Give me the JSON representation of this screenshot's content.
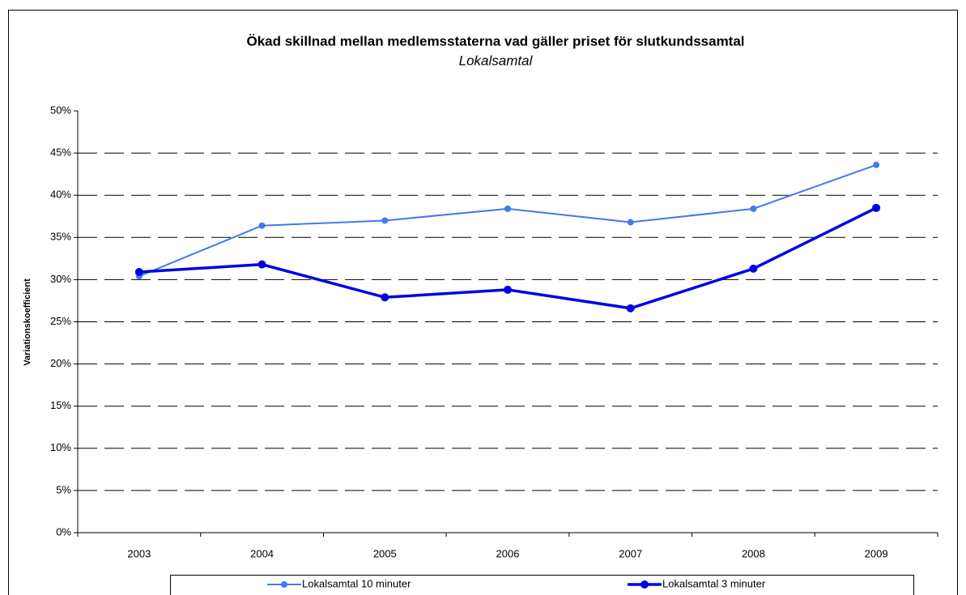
{
  "chart_data": {
    "type": "line",
    "title": "Ökad skillnad mellan medlemsstaterna vad gäller priset för slutkundssamtal",
    "subtitle": "Lokalsamtal",
    "y_label": "Variationskoefficient",
    "categories": [
      "2003",
      "2004",
      "2005",
      "2006",
      "2007",
      "2008",
      "2009"
    ],
    "series": [
      {
        "name": "Lokalsamtal 10 minuter",
        "color": "#3f7af0",
        "values": [
          30.4,
          36.4,
          37.0,
          38.4,
          36.8,
          38.4,
          43.6
        ]
      },
      {
        "name": "Lokalsamtal 3 minuter",
        "color": "#0000e6",
        "values": [
          30.9,
          31.8,
          27.9,
          28.8,
          26.6,
          31.3,
          38.5
        ]
      }
    ],
    "ylim": [
      0,
      50
    ],
    "yticks": [
      {
        "value": 0,
        "label": "0%"
      },
      {
        "value": 5,
        "label": "5%"
      },
      {
        "value": 10,
        "label": "10%"
      },
      {
        "value": 15,
        "label": "15%"
      },
      {
        "value": 20,
        "label": "20%"
      },
      {
        "value": 25,
        "label": "25%"
      },
      {
        "value": 30,
        "label": "30%"
      },
      {
        "value": 35,
        "label": "35%"
      },
      {
        "value": 40,
        "label": "40%"
      },
      {
        "value": 45,
        "label": "45%"
      },
      {
        "value": 50,
        "label": "50%"
      }
    ],
    "grid": true,
    "legend": "bottom"
  }
}
